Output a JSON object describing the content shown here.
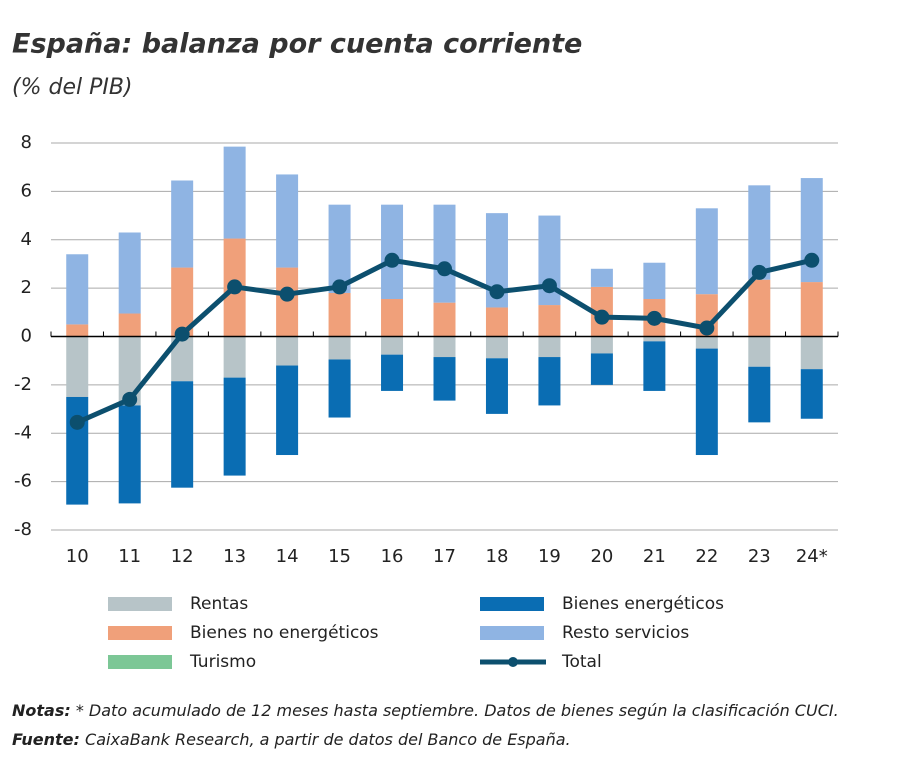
{
  "chart_data": {
    "type": "bar",
    "title": "España: balanza por cuenta corriente",
    "subtitle": "(% del PIB)",
    "categories": [
      "10",
      "11",
      "12",
      "13",
      "14",
      "15",
      "16",
      "17",
      "18",
      "19",
      "20",
      "21",
      "22",
      "23",
      "24*"
    ],
    "series": [
      {
        "name": "Rentas",
        "color": "#b7c4c8",
        "values": [
          -2.5,
          -2.85,
          -1.85,
          -1.7,
          -1.2,
          -0.95,
          -0.75,
          -0.85,
          -0.9,
          -0.85,
          -0.7,
          -0.2,
          -0.5,
          -1.25,
          -1.35
        ]
      },
      {
        "name": "Bienes energéticos",
        "color": "#0a6db3",
        "values": [
          -4.45,
          -4.05,
          -4.4,
          -4.05,
          -3.7,
          -2.4,
          -1.5,
          -1.8,
          -2.3,
          -2.0,
          -1.3,
          -2.05,
          -4.4,
          -2.3,
          -2.05
        ]
      },
      {
        "name": "Bienes no energéticos",
        "color": "#f0a07a",
        "values": [
          0.5,
          0.95,
          2.85,
          4.05,
          2.85,
          1.8,
          1.55,
          1.4,
          1.2,
          1.3,
          2.05,
          1.55,
          1.75,
          2.35,
          2.25
        ]
      },
      {
        "name": "Resto servicios",
        "color": "#8fb4e3",
        "values": [
          2.9,
          3.35,
          3.6,
          3.8,
          3.85,
          3.65,
          3.9,
          4.05,
          3.9,
          3.7,
          0.75,
          1.5,
          3.55,
          3.9,
          4.3
        ]
      },
      {
        "name": "Turismo",
        "color": "#7cc796",
        "values": [
          0,
          0,
          0,
          0,
          0,
          0,
          0,
          0,
          0,
          0,
          0,
          0,
          0,
          0,
          0
        ]
      },
      {
        "name": "Total",
        "color": "#0c4f6e",
        "type": "line",
        "values": [
          -3.55,
          -2.6,
          0.1,
          2.05,
          1.75,
          2.05,
          3.15,
          2.8,
          1.85,
          2.1,
          0.8,
          0.75,
          0.35,
          2.65,
          3.15
        ]
      }
    ],
    "ylim": [
      -8,
      8
    ],
    "yticks": [
      -8,
      -6,
      -4,
      -2,
      0,
      2,
      4,
      6,
      8
    ],
    "grid": true
  },
  "notes": {
    "label": "Notas:",
    "text": "* Dato acumulado de 12 meses hasta septiembre. Datos de bienes según la clasificación CUCI."
  },
  "source": {
    "label": "Fuente:",
    "text": "CaixaBank Research, a partir de datos del Banco de España."
  }
}
